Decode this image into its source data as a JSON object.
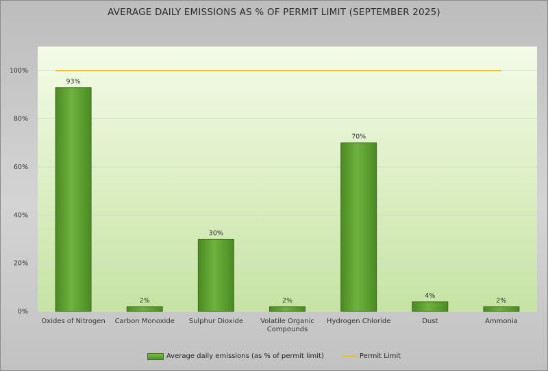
{
  "chart_data": {
    "type": "bar",
    "title": "AVERAGE DAILY EMISSIONS AS % OF PERMIT LIMIT (SEPTEMBER 2025)",
    "categories": [
      "Oxides of Nitrogen",
      "Carbon Monoxide",
      "Sulphur Dioxide",
      "Volatile Organic Compounds",
      "Hydrogen Chloride",
      "Dust",
      "Ammonia"
    ],
    "series": [
      {
        "name": "Average daily emissions (as % of permit limit)",
        "type": "bar",
        "values": [
          93,
          2,
          30,
          2,
          70,
          4,
          2
        ],
        "labels": [
          "93%",
          "2%",
          "30%",
          "2%",
          "70%",
          "4%",
          "2%"
        ],
        "color": "#5a9a2c"
      },
      {
        "name": "Permit Limit",
        "type": "line",
        "values": [
          100,
          100,
          100,
          100,
          100,
          100,
          100
        ],
        "color": "#f0c01c"
      }
    ],
    "xlabel": "",
    "ylabel": "",
    "ylim": [
      0,
      110
    ],
    "yticks": [
      0,
      20,
      40,
      60,
      80,
      100
    ],
    "ytick_labels": [
      "0%",
      "20%",
      "40%",
      "60%",
      "80%",
      "100%"
    ],
    "grid": true,
    "legend_position": "bottom"
  }
}
